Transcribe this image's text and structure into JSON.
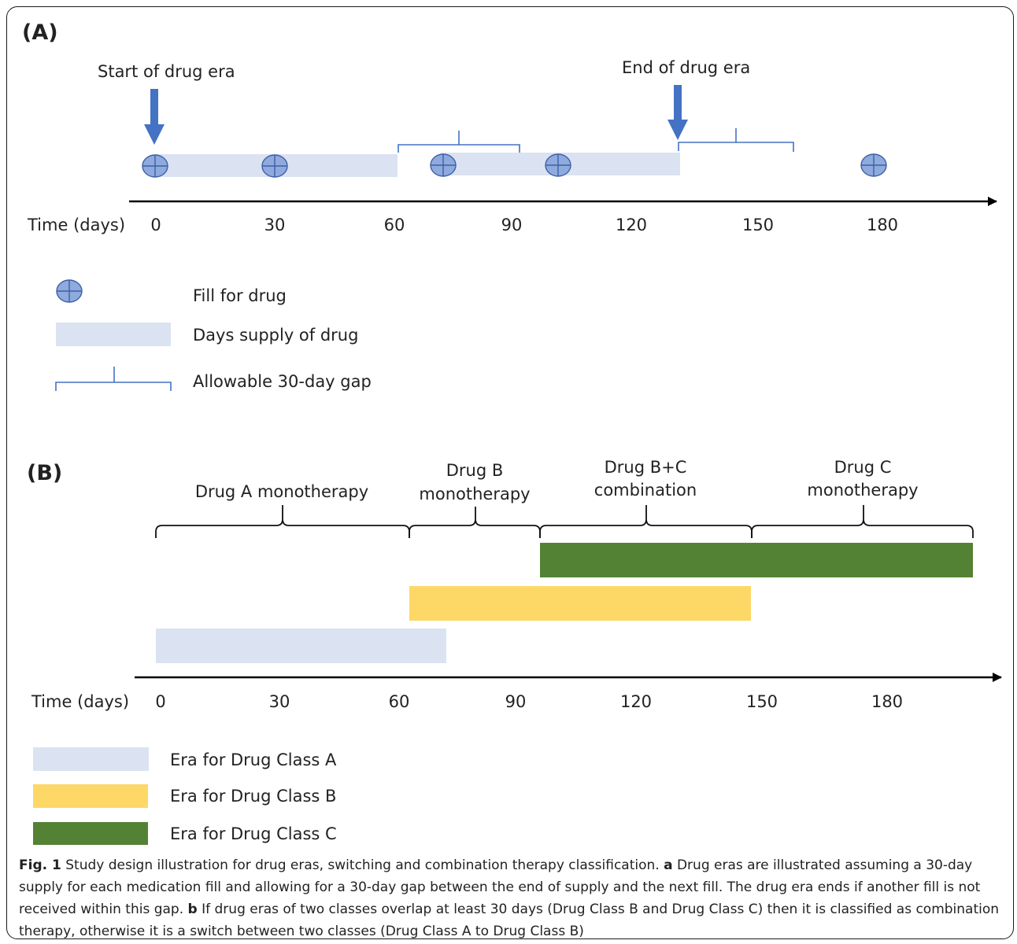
{
  "panel_a": {
    "label": "(A)",
    "start_label": "Start of drug era",
    "end_label": "End of drug era",
    "axis_label": "Time (days)",
    "ticks": [
      "0",
      "30",
      "60",
      "90",
      "120",
      "150",
      "180"
    ],
    "legend": {
      "fill": "Fill for drug",
      "supply": "Days supply of drug",
      "gap": "Allowable 30-day gap"
    }
  },
  "panel_b": {
    "label": "(B)",
    "axis_label": "Time (days)",
    "ticks": [
      "0",
      "30",
      "60",
      "90",
      "120",
      "150",
      "180"
    ],
    "periods": [
      {
        "line1": "Drug A monotherapy",
        "line2": ""
      },
      {
        "line1": "Drug B",
        "line2": "monotherapy"
      },
      {
        "line1": "Drug B+C",
        "line2": "combination"
      },
      {
        "line1": "Drug C",
        "line2": "monotherapy"
      }
    ],
    "legend": {
      "a": "Era for Drug Class A",
      "b": "Era for Drug Class B",
      "c": "Era for Drug Class C"
    }
  },
  "caption": {
    "fig": "Fig. 1",
    "title": " Study design illustration for drug eras, switching and combination therapy classification. ",
    "a_marker": "a",
    "a_text": " Drug eras are illustrated assuming a 30-day supply for each medication fill and allowing for a 30-day gap between the end of supply and the next fill. The drug era ends if another fill is not received within this gap. ",
    "b_marker": "b",
    "b_text": " If drug eras of two classes overlap at least 30 days (Drug Class B and Drug Class C) then it is classified as combination therapy, otherwise it is a switch between two classes (Drug Class A to Drug Class B)"
  },
  "colors": {
    "supply": "#dbe3f2",
    "class_a": "#dbe3f2",
    "class_b": "#fdd866",
    "class_c": "#548235",
    "arrow": "#4472c4",
    "bracket_a": "#4472c4",
    "bracket_b": "#111111"
  }
}
